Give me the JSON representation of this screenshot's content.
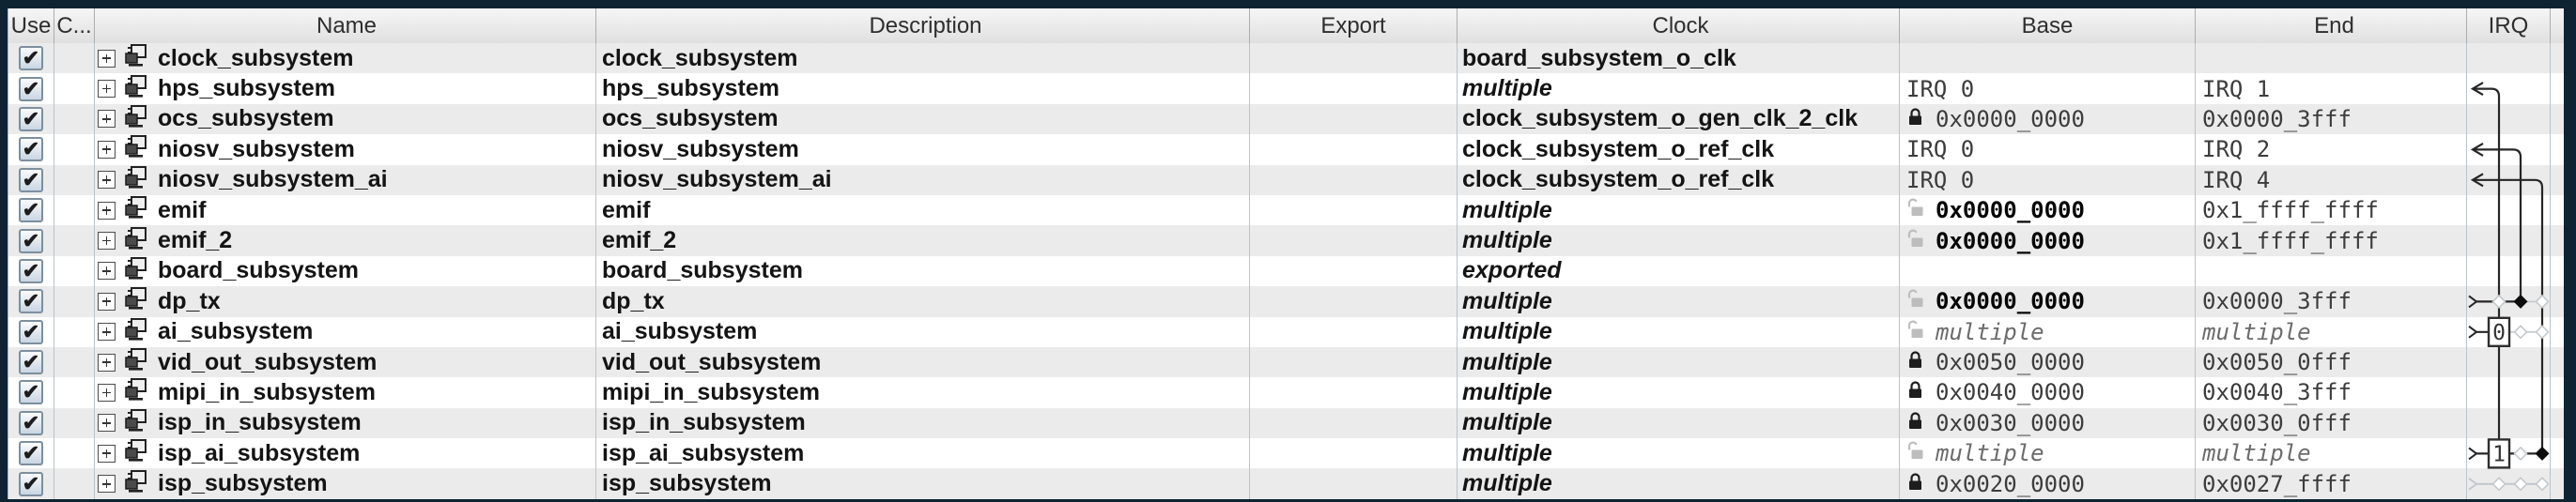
{
  "columns": [
    {
      "id": "use",
      "label": "Use"
    },
    {
      "id": "connections",
      "label": "C..."
    },
    {
      "id": "name",
      "label": "Name"
    },
    {
      "id": "description",
      "label": "Description"
    },
    {
      "id": "export",
      "label": "Export"
    },
    {
      "id": "clock",
      "label": "Clock"
    },
    {
      "id": "base",
      "label": "Base"
    },
    {
      "id": "end",
      "label": "End"
    },
    {
      "id": "irq",
      "label": "IRQ"
    },
    {
      "id": "spacer",
      "label": ""
    }
  ],
  "icons": {
    "check_glyph": "✔",
    "expand_icon": "plus-box",
    "component_icon": "subsystem-block",
    "lock_closed": "lock-closed",
    "lock_open": "lock-open"
  },
  "colors": {
    "frame": "#0e2433",
    "stripe": "#ebebeb",
    "grid_line": "#b9c4cc",
    "irq_line": "#262626",
    "irq_ghost": "#c3c9cd",
    "checkbox_border": "#7d8f9e"
  },
  "rows": [
    {
      "use": true,
      "name": "clock_subsystem",
      "description": "clock_subsystem",
      "export": "",
      "clock": {
        "text": "board_subsystem_o_clk",
        "italic": false
      },
      "base": {
        "text": "",
        "style": "empty",
        "lock": "none"
      },
      "end": {
        "text": "",
        "style": "empty"
      }
    },
    {
      "use": true,
      "name": "hps_subsystem",
      "description": "hps_subsystem",
      "export": "",
      "clock": {
        "text": "multiple",
        "italic": true
      },
      "base": {
        "text": "IRQ 0",
        "style": "irq",
        "lock": "none"
      },
      "end": {
        "text": "IRQ 1",
        "style": "irq"
      }
    },
    {
      "use": true,
      "name": "ocs_subsystem",
      "description": "ocs_subsystem",
      "export": "",
      "clock": {
        "text": "clock_subsystem_o_gen_clk_2_clk",
        "italic": false
      },
      "base": {
        "text": "0x0000_0000",
        "style": "address",
        "lock": "locked"
      },
      "end": {
        "text": "0x0000_3fff",
        "style": "address"
      }
    },
    {
      "use": true,
      "name": "niosv_subsystem",
      "description": "niosv_subsystem",
      "export": "",
      "clock": {
        "text": "clock_subsystem_o_ref_clk",
        "italic": false
      },
      "base": {
        "text": "IRQ 0",
        "style": "irq",
        "lock": "none"
      },
      "end": {
        "text": "IRQ 2",
        "style": "irq"
      }
    },
    {
      "use": true,
      "name": "niosv_subsystem_ai",
      "description": "niosv_subsystem_ai",
      "export": "",
      "clock": {
        "text": "clock_subsystem_o_ref_clk",
        "italic": false
      },
      "base": {
        "text": "IRQ 0",
        "style": "irq",
        "lock": "none"
      },
      "end": {
        "text": "IRQ 4",
        "style": "irq"
      }
    },
    {
      "use": true,
      "name": "emif",
      "description": "emif",
      "export": "",
      "clock": {
        "text": "multiple",
        "italic": true
      },
      "base": {
        "text": "0x0000_0000",
        "style": "address-bold",
        "lock": "unlocked"
      },
      "end": {
        "text": "0x1_ffff_ffff",
        "style": "address"
      }
    },
    {
      "use": true,
      "name": "emif_2",
      "description": "emif_2",
      "export": "",
      "clock": {
        "text": "multiple",
        "italic": true
      },
      "base": {
        "text": "0x0000_0000",
        "style": "address-bold",
        "lock": "unlocked"
      },
      "end": {
        "text": "0x1_ffff_ffff",
        "style": "address"
      }
    },
    {
      "use": true,
      "name": "board_subsystem",
      "description": "board_subsystem",
      "export": "",
      "clock": {
        "text": "exported",
        "italic": true
      },
      "base": {
        "text": "",
        "style": "empty",
        "lock": "none"
      },
      "end": {
        "text": "",
        "style": "empty"
      }
    },
    {
      "use": true,
      "name": "dp_tx",
      "description": "dp_tx",
      "export": "",
      "clock": {
        "text": "multiple",
        "italic": true
      },
      "base": {
        "text": "0x0000_0000",
        "style": "address-bold",
        "lock": "unlocked"
      },
      "end": {
        "text": "0x0000_3fff",
        "style": "address"
      }
    },
    {
      "use": true,
      "name": "ai_subsystem",
      "description": "ai_subsystem",
      "export": "",
      "clock": {
        "text": "multiple",
        "italic": true
      },
      "base": {
        "text": "multiple",
        "style": "multiple",
        "lock": "unlocked"
      },
      "end": {
        "text": "multiple",
        "style": "multiple"
      }
    },
    {
      "use": true,
      "name": "vid_out_subsystem",
      "description": "vid_out_subsystem",
      "export": "",
      "clock": {
        "text": "multiple",
        "italic": true
      },
      "base": {
        "text": "0x0050_0000",
        "style": "address",
        "lock": "locked"
      },
      "end": {
        "text": "0x0050_0fff",
        "style": "address"
      }
    },
    {
      "use": true,
      "name": "mipi_in_subsystem",
      "description": "mipi_in_subsystem",
      "export": "",
      "clock": {
        "text": "multiple",
        "italic": true
      },
      "base": {
        "text": "0x0040_0000",
        "style": "address",
        "lock": "locked"
      },
      "end": {
        "text": "0x0040_3fff",
        "style": "address"
      }
    },
    {
      "use": true,
      "name": "isp_in_subsystem",
      "description": "isp_in_subsystem",
      "export": "",
      "clock": {
        "text": "multiple",
        "italic": true
      },
      "base": {
        "text": "0x0030_0000",
        "style": "address",
        "lock": "locked"
      },
      "end": {
        "text": "0x0030_0fff",
        "style": "address"
      }
    },
    {
      "use": true,
      "name": "isp_ai_subsystem",
      "description": "isp_ai_subsystem",
      "export": "",
      "clock": {
        "text": "multiple",
        "italic": true
      },
      "base": {
        "text": "multiple",
        "style": "multiple",
        "lock": "unlocked"
      },
      "end": {
        "text": "multiple",
        "style": "multiple"
      }
    },
    {
      "use": true,
      "name": "isp_subsystem",
      "description": "isp_subsystem",
      "export": "",
      "clock": {
        "text": "multiple",
        "italic": true
      },
      "base": {
        "text": "0x0020_0000",
        "style": "address",
        "lock": "locked"
      },
      "end": {
        "text": "0x0027_ffff",
        "style": "address"
      }
    }
  ],
  "irq_column": {
    "vertical_lines": [
      {
        "line": 1,
        "receiver_row": 2,
        "ends_row": 14
      },
      {
        "line": 2,
        "receiver_row": 4,
        "ends_row": 9
      },
      {
        "line": 3,
        "receiver_row": 5,
        "ends_row": 14
      }
    ],
    "senders": [
      {
        "row": 9,
        "connects_to_line": 2,
        "badge": null,
        "ghost_lines": [
          1,
          3
        ],
        "faded": false
      },
      {
        "row": 10,
        "connects_to_line": 1,
        "badge": "0",
        "ghost_lines": [
          2,
          3
        ],
        "faded": false
      },
      {
        "row": 14,
        "connects_to_line": 3,
        "badge": "1",
        "ghost_lines": [
          2
        ],
        "faded": false
      },
      {
        "row": 15,
        "connects_to_line": null,
        "badge": null,
        "ghost_lines": [
          1,
          2,
          3
        ],
        "faded": true
      }
    ]
  }
}
